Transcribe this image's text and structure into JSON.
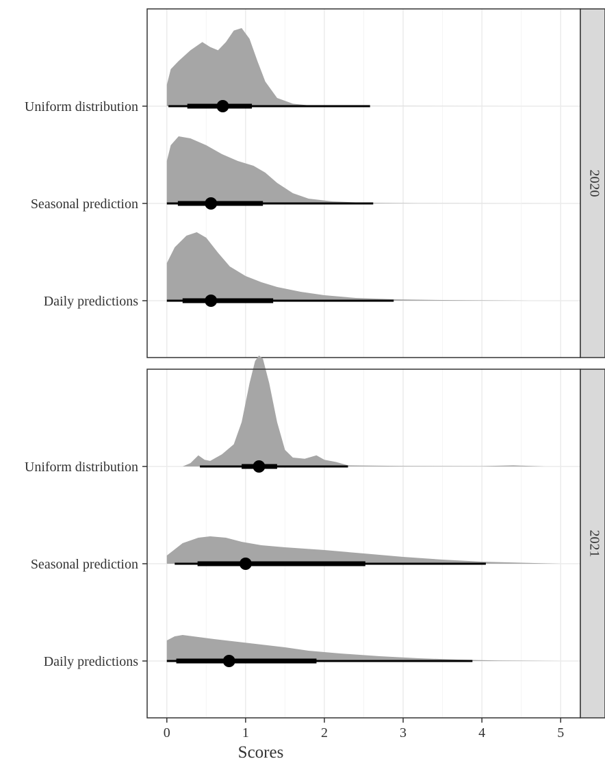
{
  "chart_data": {
    "type": "halfeye",
    "xlabel": "Scores",
    "xlim": [
      -0.25,
      5.25
    ],
    "xticks": [
      0,
      1,
      2,
      3,
      4,
      5
    ],
    "xtick_labels": [
      "0",
      "1",
      "2",
      "3",
      "4",
      "5"
    ],
    "categories": [
      "Uniform distribution",
      "Seasonal prediction",
      "Daily predictions"
    ],
    "grid": true,
    "colors": {
      "density": "#a6a6a6",
      "interval": "#000000",
      "strip": "#d9d9d9",
      "grid": "#ebebeb",
      "border": "#333333"
    },
    "facets": [
      {
        "label": "2020",
        "rows": [
          {
            "category": "Uniform distribution",
            "point": 0.71,
            "interval_66": [
              0.26,
              1.08
            ],
            "interval_95": [
              0.02,
              2.58
            ],
            "density": [
              [
                0,
                0.26
              ],
              [
                0.05,
                0.45
              ],
              [
                0.15,
                0.55
              ],
              [
                0.3,
                0.68
              ],
              [
                0.45,
                0.78
              ],
              [
                0.55,
                0.72
              ],
              [
                0.65,
                0.68
              ],
              [
                0.75,
                0.78
              ],
              [
                0.85,
                0.92
              ],
              [
                0.95,
                0.95
              ],
              [
                1.05,
                0.82
              ],
              [
                1.15,
                0.55
              ],
              [
                1.25,
                0.3
              ],
              [
                1.4,
                0.1
              ],
              [
                1.6,
                0.03
              ],
              [
                1.8,
                0.01
              ],
              [
                2.5,
                0.002
              ],
              [
                4.97,
                0
              ]
            ]
          },
          {
            "category": "Seasonal prediction",
            "point": 0.56,
            "interval_66": [
              0.14,
              1.22
            ],
            "interval_95": [
              0.0,
              2.62
            ],
            "density": [
              [
                0,
                0.62
              ],
              [
                0.05,
                0.85
              ],
              [
                0.15,
                0.98
              ],
              [
                0.3,
                0.95
              ],
              [
                0.5,
                0.85
              ],
              [
                0.7,
                0.72
              ],
              [
                0.9,
                0.62
              ],
              [
                1.1,
                0.55
              ],
              [
                1.25,
                0.45
              ],
              [
                1.4,
                0.3
              ],
              [
                1.6,
                0.15
              ],
              [
                1.8,
                0.07
              ],
              [
                2.1,
                0.03
              ],
              [
                2.5,
                0.01
              ],
              [
                3.2,
                0.003
              ],
              [
                4.85,
                0
              ]
            ]
          },
          {
            "category": "Daily predictions",
            "point": 0.56,
            "interval_66": [
              0.2,
              1.35
            ],
            "interval_95": [
              0.0,
              2.88
            ],
            "density": [
              [
                0,
                0.55
              ],
              [
                0.1,
                0.78
              ],
              [
                0.25,
                0.95
              ],
              [
                0.38,
                1.0
              ],
              [
                0.5,
                0.92
              ],
              [
                0.65,
                0.7
              ],
              [
                0.8,
                0.5
              ],
              [
                1.0,
                0.36
              ],
              [
                1.2,
                0.27
              ],
              [
                1.4,
                0.2
              ],
              [
                1.7,
                0.13
              ],
              [
                2.0,
                0.08
              ],
              [
                2.4,
                0.04
              ],
              [
                2.9,
                0.02
              ],
              [
                3.5,
                0.01
              ],
              [
                4.6,
                0
              ]
            ]
          }
        ]
      },
      {
        "label": "2021",
        "rows": [
          {
            "category": "Uniform distribution",
            "point": 1.17,
            "interval_66": [
              0.95,
              1.4
            ],
            "interval_95": [
              0.42,
              2.3
            ],
            "density": [
              [
                0.2,
                0
              ],
              [
                0.3,
                0.03
              ],
              [
                0.4,
                0.1
              ],
              [
                0.48,
                0.06
              ],
              [
                0.55,
                0.05
              ],
              [
                0.7,
                0.11
              ],
              [
                0.85,
                0.2
              ],
              [
                0.95,
                0.4
              ],
              [
                1.05,
                0.75
              ],
              [
                1.12,
                0.95
              ],
              [
                1.17,
                1.0
              ],
              [
                1.22,
                0.97
              ],
              [
                1.3,
                0.75
              ],
              [
                1.4,
                0.4
              ],
              [
                1.5,
                0.15
              ],
              [
                1.6,
                0.08
              ],
              [
                1.75,
                0.07
              ],
              [
                1.9,
                0.1
              ],
              [
                2.0,
                0.06
              ],
              [
                2.15,
                0.04
              ],
              [
                2.3,
                0.01
              ],
              [
                3.0,
                0.005
              ],
              [
                4.0,
                0.003
              ],
              [
                4.4,
                0.01
              ],
              [
                4.8,
                0
              ]
            ]
          },
          {
            "category": "Seasonal prediction",
            "point": 1.0,
            "interval_66": [
              0.39,
              2.52
            ],
            "interval_95": [
              0.1,
              4.05
            ],
            "density": [
              [
                0,
                0.12
              ],
              [
                0.2,
                0.3
              ],
              [
                0.4,
                0.38
              ],
              [
                0.55,
                0.4
              ],
              [
                0.75,
                0.38
              ],
              [
                0.95,
                0.32
              ],
              [
                1.2,
                0.27
              ],
              [
                1.5,
                0.24
              ],
              [
                2.0,
                0.2
              ],
              [
                2.5,
                0.15
              ],
              [
                3.0,
                0.1
              ],
              [
                3.5,
                0.06
              ],
              [
                4.0,
                0.03
              ],
              [
                4.5,
                0.015
              ],
              [
                5.0,
                0
              ]
            ]
          },
          {
            "category": "Daily predictions",
            "point": 0.79,
            "interval_66": [
              0.12,
              1.9
            ],
            "interval_95": [
              0.0,
              3.88
            ],
            "density": [
              [
                0,
                0.3
              ],
              [
                0.1,
                0.36
              ],
              [
                0.2,
                0.38
              ],
              [
                0.4,
                0.35
              ],
              [
                0.6,
                0.32
              ],
              [
                0.9,
                0.28
              ],
              [
                1.2,
                0.24
              ],
              [
                1.5,
                0.2
              ],
              [
                1.8,
                0.15
              ],
              [
                2.2,
                0.11
              ],
              [
                2.7,
                0.07
              ],
              [
                3.2,
                0.04
              ],
              [
                3.7,
                0.02
              ],
              [
                4.2,
                0.008
              ],
              [
                5.0,
                0
              ]
            ]
          }
        ]
      }
    ]
  }
}
